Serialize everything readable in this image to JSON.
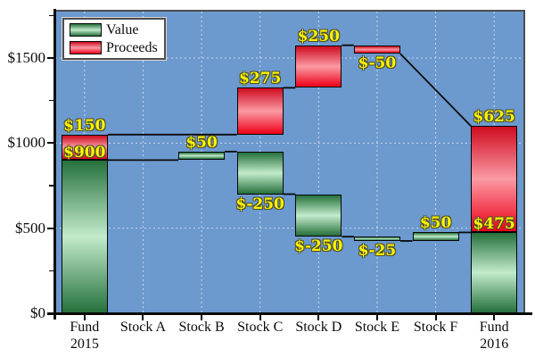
{
  "colors": {
    "plot_bg": "#6C99CE",
    "grid_line": "#CBD9EB",
    "frame_line": "#4d4d4d",
    "axis_line": "#0a0a0a",
    "value_dark": "#26713C",
    "value_light": "#C2EBCC",
    "proceeds_dark": "#CE0C20",
    "proceeds_light": "#FB9AA3",
    "proceeds_end": "#EE0019",
    "label_text": "#FCF402"
  },
  "legend": {
    "items": [
      {
        "label": "Value"
      },
      {
        "label": "Proceeds"
      }
    ]
  },
  "chart_data": {
    "type": "bar",
    "subtype": "waterfall",
    "title": "",
    "xlabel": "",
    "ylabel": "",
    "legend_position": "top-left",
    "grid": "dotted, horizontal at majors and vertical at category centers",
    "ylim": [
      0,
      1772
    ],
    "categories": [
      [
        "Fund",
        "2015"
      ],
      [
        "Stock A"
      ],
      [
        "Stock B"
      ],
      [
        "Stock C"
      ],
      [
        "Stock D"
      ],
      [
        "Stock E"
      ],
      [
        "Stock F"
      ],
      [
        "Fund",
        "2016"
      ]
    ],
    "y_axis": {
      "ticks": [
        {
          "value": 0,
          "label": "$0"
        },
        {
          "value": 500,
          "label": "$500"
        },
        {
          "value": 1000,
          "label": "$1000"
        },
        {
          "value": 1500,
          "label": "$1500"
        }
      ],
      "minor_ticks": [
        250,
        750,
        1250,
        1750
      ]
    },
    "series": [
      {
        "name": "Value",
        "color": "green"
      },
      {
        "name": "Proceeds",
        "color": "red"
      }
    ],
    "bars": [
      {
        "cat": 0,
        "series": "value",
        "from": 0,
        "to": 900
      },
      {
        "cat": 0,
        "series": "proceeds",
        "from": 900,
        "to": 1050
      },
      {
        "cat": 2,
        "series": "value",
        "from": 900,
        "to": 950
      },
      {
        "cat": 3,
        "series": "value",
        "from": 700,
        "to": 950
      },
      {
        "cat": 3,
        "series": "proceeds",
        "from": 1050,
        "to": 1325
      },
      {
        "cat": 4,
        "series": "value",
        "from": 450,
        "to": 700
      },
      {
        "cat": 4,
        "series": "proceeds",
        "from": 1325,
        "to": 1575
      },
      {
        "cat": 5,
        "series": "value",
        "from": 425,
        "to": 450
      },
      {
        "cat": 5,
        "series": "proceeds",
        "from": 1525,
        "to": 1575
      },
      {
        "cat": 6,
        "series": "value",
        "from": 425,
        "to": 475
      },
      {
        "cat": 7,
        "series": "value",
        "from": 0,
        "to": 475
      },
      {
        "cat": 7,
        "series": "proceeds",
        "from": 475,
        "to": 1100
      }
    ],
    "labels": [
      {
        "cat": 0,
        "text": "$150",
        "value": 1050,
        "place": "above"
      },
      {
        "cat": 0,
        "text": "$900",
        "value": 945,
        "place": "center"
      },
      {
        "cat": 2,
        "text": "$50",
        "value": 950,
        "place": "above"
      },
      {
        "cat": 3,
        "text": "$275",
        "value": 1325,
        "place": "above"
      },
      {
        "cat": 3,
        "text": "$-250",
        "value": 700,
        "place": "below"
      },
      {
        "cat": 4,
        "text": "$250",
        "value": 1575,
        "place": "above"
      },
      {
        "cat": 4,
        "text": "$-250",
        "value": 450,
        "place": "below"
      },
      {
        "cat": 5,
        "text": "$-50",
        "value": 1525,
        "place": "below"
      },
      {
        "cat": 5,
        "text": "$-25",
        "value": 425,
        "place": "below"
      },
      {
        "cat": 6,
        "text": "$50",
        "value": 475,
        "place": "above"
      },
      {
        "cat": 7,
        "text": "$625",
        "value": 1100,
        "place": "above"
      },
      {
        "cat": 7,
        "text": "$475",
        "value": 522,
        "place": "center"
      }
    ],
    "connectors": [
      {
        "from_cat": 0,
        "to_cat": 3,
        "y1": 1050,
        "y2": 1050
      },
      {
        "from_cat": 0,
        "to_cat": 2,
        "y1": 900,
        "y2": 900
      },
      {
        "from_cat": 2,
        "to_cat": 3,
        "y1": 950,
        "y2": 950
      },
      {
        "from_cat": 3,
        "to_cat": 4,
        "y1": 1325,
        "y2": 1325
      },
      {
        "from_cat": 3,
        "to_cat": 4,
        "y1": 700,
        "y2": 700
      },
      {
        "from_cat": 4,
        "to_cat": 5,
        "y1": 1575,
        "y2": 1575
      },
      {
        "from_cat": 4,
        "to_cat": 5,
        "y1": 450,
        "y2": 450
      },
      {
        "from_cat": 5,
        "to_cat": 6,
        "y1": 425,
        "y2": 425
      },
      {
        "from_cat": 6,
        "to_cat": 7,
        "y1": 475,
        "y2": 475
      },
      {
        "from_cat": 5,
        "to_cat": 7,
        "y1": 1525,
        "y2": 1100
      }
    ]
  }
}
